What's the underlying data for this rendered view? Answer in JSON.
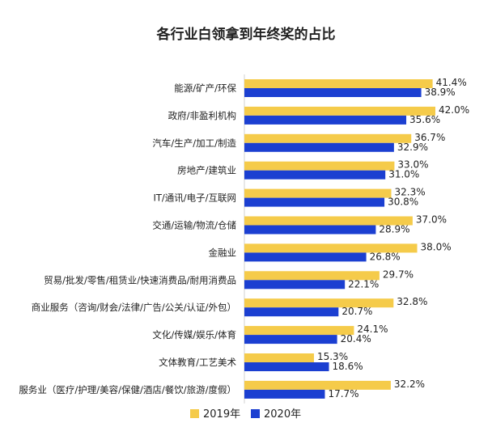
{
  "chart_data": {
    "type": "bar",
    "orientation": "horizontal",
    "title": "各行业白领拿到年终奖的占比",
    "categories": [
      "能源/矿产/环保",
      "政府/非盈利机构",
      "汽车/生产/加工/制造",
      "房地产/建筑业",
      "IT/通讯/电子/互联网",
      "交通/运输/物流/仓储",
      "金融业",
      "贸易/批发/零售/租赁业/快速消费品/耐用消费品",
      "商业服务（咨询/财会/法律/广告/公关/认证/外包）",
      "文化/传媒/娱乐/体育",
      "文体教育/工艺美术",
      "服务业（医疗/护理/美容/保健/酒店/餐饮/旅游/度假）"
    ],
    "series": [
      {
        "name": "2019年",
        "color": "#F5CB4A",
        "values": [
          41.4,
          42.0,
          36.7,
          33.0,
          32.3,
          37.0,
          38.0,
          29.7,
          32.8,
          24.1,
          15.3,
          32.2
        ],
        "labels": [
          "41.4%",
          "42.0%",
          "36.7%",
          "33.0%",
          "32.3%",
          "37.0%",
          "38.0%",
          "29.7%",
          "32.8%",
          "24.1%",
          "15.3%",
          "32.2%"
        ]
      },
      {
        "name": "2020年",
        "color": "#1B3FD1",
        "values": [
          38.9,
          35.6,
          32.9,
          31.0,
          30.8,
          28.9,
          26.8,
          22.1,
          20.7,
          20.4,
          18.6,
          17.7
        ],
        "labels": [
          "38.9%",
          "35.6%",
          "32.9%",
          "31.0%",
          "30.8%",
          "28.9%",
          "26.8%",
          "22.1%",
          "20.7%",
          "20.4%",
          "18.6%",
          "17.7%"
        ]
      }
    ],
    "xlim": [
      0,
      42
    ],
    "grid": false,
    "legend": "bottom-center"
  }
}
